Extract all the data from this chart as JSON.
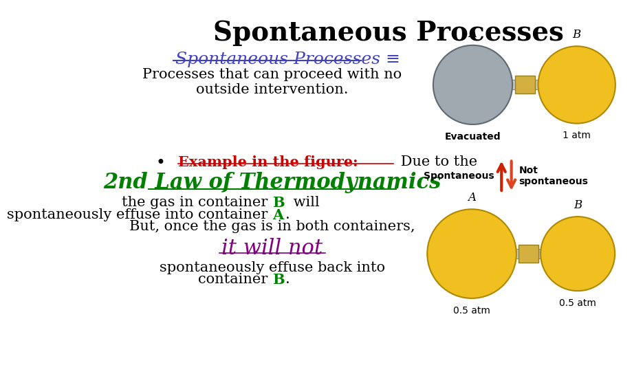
{
  "title": "Spontaneous Processes",
  "title_fontsize": 28,
  "title_fontweight": "bold",
  "bg_color": "#ffffff",
  "subtitle_text": "Spontaneous Processes ≡",
  "subtitle_color": "#4040c0",
  "subtitle_fontsize": 18,
  "definition_text": "Processes that can proceed with no\noutside intervention.",
  "definition_fontsize": 15,
  "bullet_example_bold": "Example in the figure:",
  "bullet_example_suffix": " Due to the",
  "bullet_fontsize": 15,
  "law_text": "2nd Law of Thermodynamics",
  "law_fontsize": 22,
  "law_color": "#008000",
  "body_fontsize": 15,
  "italics_text": "it will not",
  "italics_color": "#800080",
  "italics_fontsize": 22,
  "green_color": "#008000",
  "black_color": "#000000",
  "red_color": "#cc0000",
  "yellow_sphere_color": "#f0c020",
  "gray_sphere_color": "#a0a8b0"
}
